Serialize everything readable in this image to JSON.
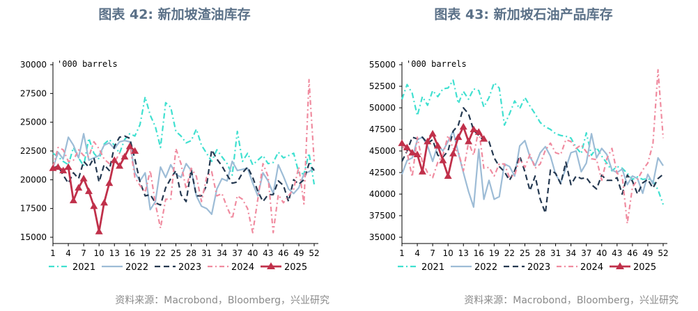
{
  "colors": {
    "2021": "#40e0d0",
    "2022": "#9dbcd6",
    "2023": "#243850",
    "2024": "#f08ca0",
    "2025": "#c0304a",
    "title": "#5b7188"
  },
  "chart_data": [
    {
      "type": "line",
      "title": "图表 42: 新加坡渣油库存",
      "unit_label": "'000 barrels",
      "source": "资料来源：Macrobond，Bloomberg，兴业研究",
      "ylim": [
        15000,
        30000
      ],
      "yticks": [
        15000,
        17500,
        20000,
        22500,
        25000,
        27500,
        30000
      ],
      "xlim": [
        1,
        52
      ],
      "xticks": [
        1,
        4,
        7,
        10,
        13,
        16,
        19,
        22,
        25,
        28,
        31,
        34,
        37,
        40,
        43,
        46,
        49,
        52
      ],
      "grid": false,
      "legend_position": "bottom",
      "series": [
        {
          "name": "2021",
          "x": [
            1,
            2,
            3,
            4,
            5,
            6,
            7,
            8,
            9,
            10,
            11,
            12,
            13,
            14,
            15,
            16,
            17,
            18,
            19,
            20,
            21,
            22,
            23,
            24,
            25,
            26,
            27,
            28,
            29,
            30,
            31,
            32,
            33,
            34,
            35,
            36,
            37,
            38,
            39,
            40,
            41,
            42,
            43,
            44,
            45,
            46,
            47,
            48,
            49,
            50,
            51,
            52
          ],
          "values": [
            22300,
            22000,
            21600,
            21300,
            22800,
            21900,
            21200,
            23600,
            22300,
            21800,
            23100,
            23500,
            23000,
            22300,
            23500,
            24000,
            23800,
            24800,
            27200,
            25600,
            24600,
            22800,
            26700,
            26300,
            24200,
            23800,
            23200,
            23400,
            24400,
            23000,
            22300,
            21600,
            22600,
            22000,
            21400,
            20400,
            24200,
            21600,
            22300,
            21300,
            21700,
            22100,
            21400,
            21500,
            22400,
            21900,
            22100,
            22300,
            20600,
            20500,
            22300,
            19600
          ]
        },
        {
          "name": "2022",
          "x": [
            1,
            2,
            3,
            4,
            5,
            6,
            7,
            8,
            9,
            10,
            11,
            12,
            13,
            14,
            15,
            16,
            17,
            18,
            19,
            20,
            21,
            22,
            23,
            24,
            25,
            26,
            27,
            28,
            29,
            30,
            31,
            32,
            33,
            34,
            35,
            36,
            37,
            38,
            39,
            40,
            41,
            42,
            43,
            44,
            45,
            46,
            47,
            48,
            49,
            50,
            51,
            52
          ],
          "values": [
            21000,
            22400,
            21800,
            23700,
            23000,
            21900,
            24000,
            21700,
            21900,
            22100,
            23000,
            23200,
            22700,
            23300,
            23400,
            23300,
            20600,
            19900,
            20600,
            17400,
            18100,
            21100,
            20200,
            21300,
            20500,
            20200,
            21400,
            20800,
            18600,
            17700,
            17500,
            17000,
            19200,
            20100,
            19900,
            21600,
            20800,
            20900,
            21000,
            19700,
            18600,
            20600,
            19900,
            18800,
            21300,
            20300,
            19200,
            18800,
            19300,
            20500,
            20700,
            21000
          ]
        },
        {
          "name": "2023",
          "x": [
            1,
            2,
            3,
            4,
            5,
            6,
            7,
            8,
            9,
            10,
            11,
            12,
            13,
            14,
            15,
            16,
            17,
            18,
            19,
            20,
            21,
            22,
            23,
            24,
            25,
            26,
            27,
            28,
            29,
            30,
            31,
            32,
            33,
            34,
            35,
            36,
            37,
            38,
            39,
            40,
            41,
            42,
            43,
            44,
            45,
            46,
            47,
            48,
            49,
            50,
            51,
            52
          ],
          "values": [
            21000,
            21200,
            20400,
            19700,
            20600,
            20100,
            21600,
            21100,
            21900,
            19800,
            21300,
            20800,
            22900,
            23700,
            23800,
            23600,
            21800,
            19800,
            18600,
            18700,
            18000,
            17800,
            19300,
            20100,
            20800,
            18700,
            18100,
            20900,
            18600,
            18600,
            19500,
            22600,
            21800,
            21200,
            20400,
            19700,
            19800,
            20600,
            21100,
            20200,
            19000,
            18100,
            18700,
            18700,
            19900,
            19500,
            18100,
            20000,
            19600,
            20000,
            21400,
            20800
          ]
        },
        {
          "name": "2024",
          "x": [
            1,
            2,
            3,
            4,
            5,
            6,
            7,
            8,
            9,
            10,
            11,
            12,
            13,
            14,
            15,
            16,
            17,
            18,
            19,
            20,
            21,
            22,
            23,
            24,
            25,
            26,
            27,
            28,
            29,
            30,
            31,
            32,
            33,
            34,
            35,
            36,
            37,
            38,
            39,
            40,
            41,
            42,
            43,
            44,
            45,
            46,
            47,
            48,
            49,
            50,
            51,
            52
          ],
          "values": [
            21100,
            22800,
            22600,
            21600,
            21700,
            22600,
            22100,
            22000,
            23300,
            22700,
            21800,
            21400,
            21500,
            22300,
            21900,
            23100,
            20200,
            19500,
            18900,
            20800,
            17900,
            15800,
            18300,
            18300,
            22700,
            21400,
            19200,
            21000,
            20300,
            18100,
            20200,
            20700,
            18600,
            18800,
            17600,
            16600,
            18600,
            18300,
            17500,
            15400,
            18300,
            21400,
            20300,
            15400,
            18700,
            18000,
            18600,
            19200,
            21100,
            17900,
            28700,
            21600
          ]
        },
        {
          "name": "2025",
          "x": [
            1,
            2,
            3,
            4,
            5,
            6,
            7,
            8,
            9,
            10,
            11,
            12,
            13,
            14,
            15,
            16,
            17
          ],
          "values": [
            21000,
            21100,
            20800,
            21100,
            18200,
            19300,
            20100,
            19000,
            17700,
            15500,
            18000,
            19700,
            21700,
            21200,
            22000,
            22900,
            22500
          ]
        }
      ]
    },
    {
      "type": "line",
      "title": "图表 43: 新加坡石油产品库存",
      "unit_label": "'000 barrels",
      "source": "资料来源：Macrobond，Bloomberg，兴业研究",
      "ylim": [
        35000,
        55000
      ],
      "yticks": [
        35000,
        37500,
        40000,
        42500,
        45000,
        47500,
        50000,
        52500,
        55000
      ],
      "xlim": [
        1,
        52
      ],
      "xticks": [
        1,
        4,
        7,
        10,
        13,
        16,
        19,
        22,
        25,
        28,
        31,
        34,
        37,
        40,
        43,
        46,
        49,
        52
      ],
      "grid": false,
      "legend_position": "bottom",
      "series": [
        {
          "name": "2021",
          "x": [
            1,
            2,
            3,
            4,
            5,
            6,
            7,
            8,
            9,
            10,
            11,
            12,
            13,
            14,
            15,
            16,
            17,
            18,
            19,
            20,
            21,
            22,
            23,
            24,
            25,
            26,
            27,
            28,
            29,
            30,
            31,
            32,
            33,
            34,
            35,
            36,
            37,
            38,
            39,
            40,
            41,
            42,
            43,
            44,
            45,
            46,
            47,
            48,
            49,
            50,
            51,
            52
          ],
          "values": [
            51000,
            52700,
            51700,
            49100,
            51300,
            50300,
            52000,
            51300,
            52200,
            52300,
            53200,
            50500,
            51900,
            51000,
            52200,
            52000,
            50100,
            51200,
            52900,
            52300,
            48000,
            49300,
            50800,
            49900,
            51200,
            50200,
            49300,
            48300,
            47800,
            47500,
            47000,
            46800,
            46700,
            46500,
            45400,
            44700,
            47100,
            44500,
            45400,
            44400,
            43600,
            42700,
            43200,
            43000,
            42400,
            41700,
            42000,
            41700,
            41800,
            41500,
            40500,
            38800
          ]
        },
        {
          "name": "2022",
          "x": [
            1,
            2,
            3,
            4,
            5,
            6,
            7,
            8,
            9,
            10,
            11,
            12,
            13,
            14,
            15,
            16,
            17,
            18,
            19,
            20,
            21,
            22,
            23,
            24,
            25,
            26,
            27,
            28,
            29,
            30,
            31,
            32,
            33,
            34,
            35,
            36,
            37,
            38,
            39,
            40,
            41,
            42,
            43,
            44,
            45,
            46,
            47,
            48,
            49,
            50,
            51,
            52
          ],
          "values": [
            42300,
            43900,
            44200,
            46300,
            46600,
            45600,
            43800,
            45700,
            45000,
            46100,
            47300,
            44800,
            42500,
            40300,
            38500,
            45200,
            39400,
            41600,
            39400,
            39700,
            43500,
            43200,
            42100,
            45600,
            46200,
            44300,
            43300,
            44800,
            45500,
            44400,
            42300,
            41300,
            43000,
            44800,
            45000,
            42600,
            43600,
            47000,
            44200,
            45300,
            44600,
            42800,
            42500,
            42900,
            41100,
            42100,
            41800,
            40100,
            42300,
            41200,
            44200,
            43300
          ]
        },
        {
          "name": "2023",
          "x": [
            1,
            2,
            3,
            4,
            5,
            6,
            7,
            8,
            9,
            10,
            11,
            12,
            13,
            14,
            15,
            16,
            17,
            18,
            19,
            20,
            21,
            22,
            23,
            24,
            25,
            26,
            27,
            28,
            29,
            30,
            31,
            32,
            33,
            34,
            35,
            36,
            37,
            38,
            39,
            40,
            41,
            42,
            43,
            44,
            45,
            46,
            47,
            48,
            49,
            50,
            51,
            52
          ],
          "values": [
            43800,
            45000,
            46600,
            46400,
            46600,
            45900,
            46300,
            44500,
            44300,
            45000,
            47300,
            48000,
            50000,
            49300,
            47400,
            46800,
            46200,
            46100,
            44200,
            43200,
            42600,
            41600,
            42700,
            44400,
            42600,
            40400,
            42100,
            39400,
            37800,
            42800,
            42400,
            41200,
            43700,
            41100,
            42100,
            41800,
            41900,
            41100,
            40600,
            42200,
            41600,
            41600,
            41900,
            40000,
            42200,
            41500,
            40000,
            41300,
            41700,
            40700,
            41800,
            42300
          ]
        },
        {
          "name": "2024",
          "x": [
            1,
            2,
            3,
            4,
            5,
            6,
            7,
            8,
            9,
            10,
            11,
            12,
            13,
            14,
            15,
            16,
            17,
            18,
            19,
            20,
            21,
            22,
            23,
            24,
            25,
            26,
            27,
            28,
            29,
            30,
            31,
            32,
            33,
            34,
            35,
            36,
            37,
            38,
            39,
            40,
            41,
            42,
            43,
            44,
            45,
            46,
            47,
            48,
            49,
            50,
            51,
            52
          ],
          "values": [
            45700,
            44800,
            42000,
            46600,
            43700,
            42500,
            41900,
            43700,
            44500,
            46800,
            45300,
            44900,
            42700,
            46000,
            44500,
            47500,
            43000,
            43100,
            42100,
            43500,
            43500,
            41900,
            42200,
            44100,
            43100,
            44600,
            43000,
            43500,
            45100,
            45900,
            44800,
            44600,
            46300,
            46100,
            45300,
            45700,
            44900,
            44100,
            44000,
            41600,
            44100,
            45300,
            42400,
            42100,
            36600,
            40800,
            41700,
            42800,
            43600,
            45800,
            54400,
            46500
          ]
        },
        {
          "name": "2025",
          "x": [
            1,
            2,
            3,
            4,
            5,
            6,
            7,
            8,
            9,
            10,
            11,
            12,
            13,
            14,
            15,
            16,
            17
          ],
          "values": [
            45900,
            45400,
            44800,
            44600,
            42600,
            46100,
            47000,
            45600,
            43900,
            42100,
            44700,
            46600,
            47800,
            46100,
            47500,
            47200,
            46400
          ]
        }
      ]
    }
  ]
}
